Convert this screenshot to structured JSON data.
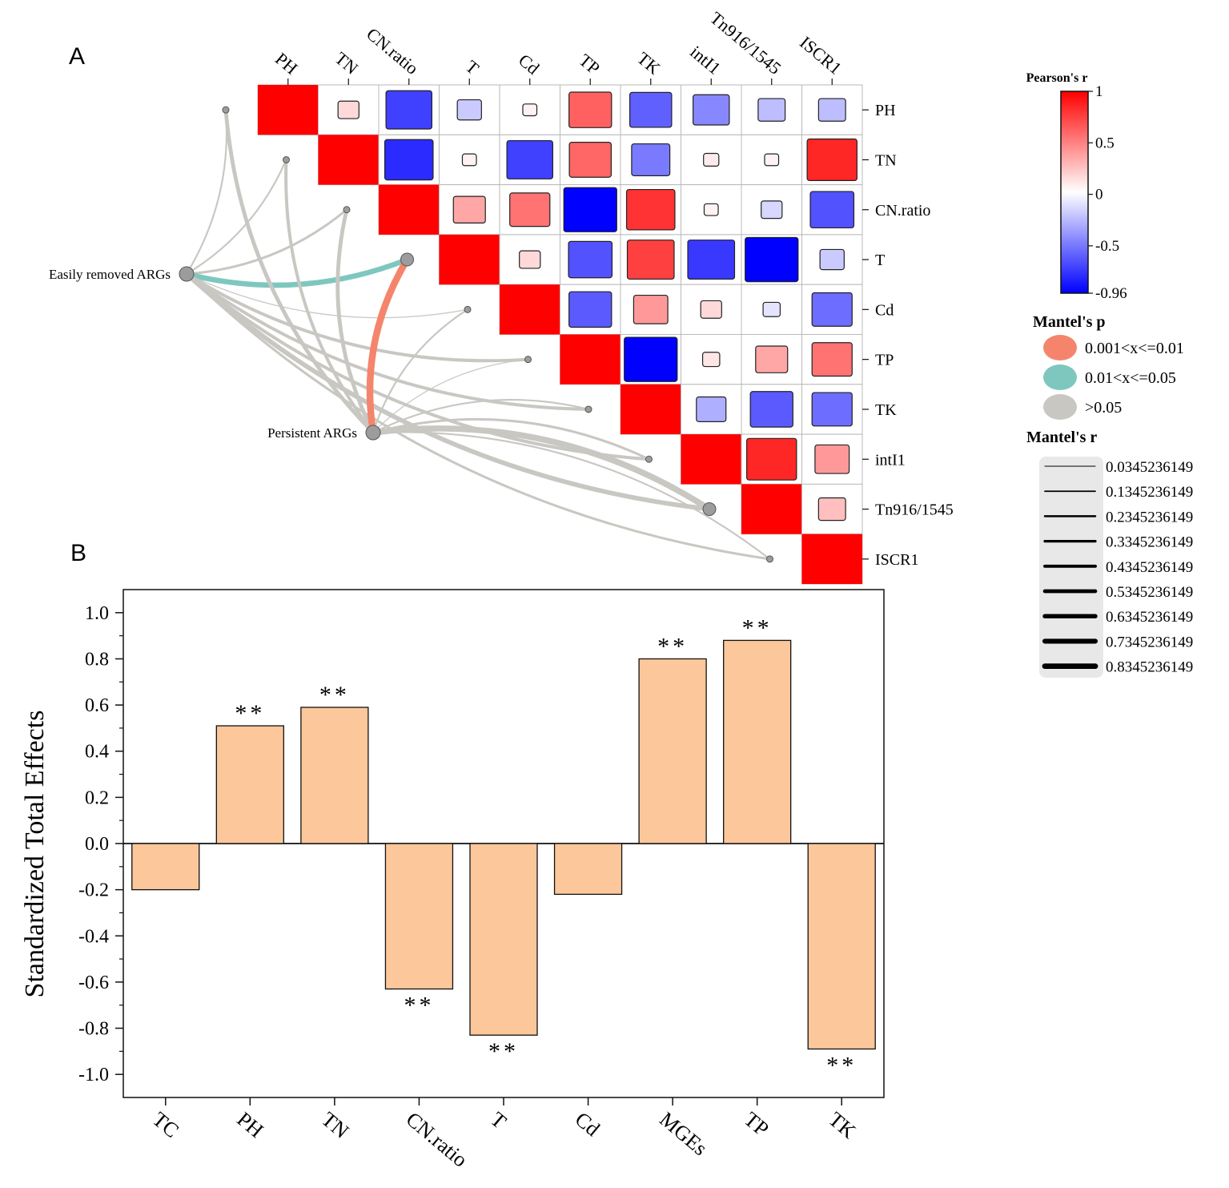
{
  "panel_a_label": "A",
  "panel_b_label": "B",
  "colors": {
    "pos": "#ff0000",
    "neg": "#0000ff",
    "link_sig1": "#f4856c",
    "link_sig2": "#7ec7be",
    "link_ns": "#c9c7c2",
    "bar_fill": "#fcc79a"
  },
  "chart_data": [
    {
      "type": "heatmap",
      "variables": [
        "PH",
        "TN",
        "CN.ratio",
        "T",
        "Cd",
        "TP",
        "TK",
        "intI1",
        "Tn916/1545",
        "ISCR1"
      ],
      "correlation_upper": [
        [
          1.0,
          0.15,
          -0.72,
          -0.2,
          0.05,
          0.62,
          -0.6,
          -0.45,
          -0.25,
          -0.25
        ],
        [
          1.0,
          -0.8,
          0.05,
          -0.72,
          0.6,
          -0.5,
          0.08,
          0.05,
          0.85
        ],
        [
          1.0,
          0.35,
          0.55,
          -0.96,
          0.8,
          0.05,
          -0.15,
          -0.65
        ],
        [
          1.0,
          0.15,
          -0.65,
          0.75,
          -0.75,
          -0.96,
          -0.2
        ],
        [
          1.0,
          -0.62,
          0.4,
          0.15,
          -0.1,
          -0.55
        ],
        [
          1.0,
          -0.96,
          0.1,
          0.35,
          0.55
        ],
        [
          1.0,
          -0.3,
          -0.62,
          -0.55
        ],
        [
          1.0,
          0.85,
          0.4
        ],
        [
          1.0,
          0.25
        ],
        [
          1.0
        ]
      ],
      "colorbar": {
        "title": "Pearson's r",
        "min": -0.96,
        "max": 1,
        "ticks": [
          "1",
          "0.5",
          "0",
          "-0.5",
          "-0.96"
        ],
        "tick_values": [
          1,
          0.5,
          0,
          -0.5,
          -0.96
        ]
      },
      "mantel_sources": [
        "Easily removed ARGs",
        "Persistent ARGs"
      ],
      "mantel_links": [
        {
          "source": "Easily removed ARGs",
          "target": "PH",
          "p": ">0.05",
          "r": 0.13
        },
        {
          "source": "Easily removed ARGs",
          "target": "TN",
          "p": ">0.05",
          "r": 0.13
        },
        {
          "source": "Easily removed ARGs",
          "target": "CN.ratio",
          "p": ">0.05",
          "r": 0.23
        },
        {
          "source": "Easily removed ARGs",
          "target": "T",
          "p": "0.01<x<=0.05",
          "r": 0.63
        },
        {
          "source": "Easily removed ARGs",
          "target": "Cd",
          "p": ">0.05",
          "r": 0.03
        },
        {
          "source": "Easily removed ARGs",
          "target": "TP",
          "p": ">0.05",
          "r": 0.33
        },
        {
          "source": "Easily removed ARGs",
          "target": "TK",
          "p": ">0.05",
          "r": 0.33
        },
        {
          "source": "Easily removed ARGs",
          "target": "intI1",
          "p": ">0.05",
          "r": 0.33
        },
        {
          "source": "Easily removed ARGs",
          "target": "Tn916/1545",
          "p": ">0.05",
          "r": 0.53
        },
        {
          "source": "Easily removed ARGs",
          "target": "ISCR1",
          "p": ">0.05",
          "r": 0.23
        },
        {
          "source": "Persistent ARGs",
          "target": "PH",
          "p": ">0.05",
          "r": 0.43
        },
        {
          "source": "Persistent ARGs",
          "target": "TN",
          "p": ">0.05",
          "r": 0.33
        },
        {
          "source": "Persistent ARGs",
          "target": "CN.ratio",
          "p": ">0.05",
          "r": 0.43
        },
        {
          "source": "Persistent ARGs",
          "target": "T",
          "p": "0.001<x<=0.01",
          "r": 0.83
        },
        {
          "source": "Persistent ARGs",
          "target": "Cd",
          "p": ">0.05",
          "r": 0.13
        },
        {
          "source": "Persistent ARGs",
          "target": "TP",
          "p": ">0.05",
          "r": 0.03
        },
        {
          "source": "Persistent ARGs",
          "target": "TK",
          "p": ">0.05",
          "r": 0.13
        },
        {
          "source": "Persistent ARGs",
          "target": "intI1",
          "p": ">0.05",
          "r": 0.23
        },
        {
          "source": "Persistent ARGs",
          "target": "Tn916/1545",
          "p": ">0.05",
          "r": 0.73
        },
        {
          "source": "Persistent ARGs",
          "target": "ISCR1",
          "p": ">0.05",
          "r": 0.13
        }
      ],
      "legend_mantel_p": {
        "title": "Mantel's p",
        "items": [
          "0.001<x<=0.01",
          "0.01<x<=0.05",
          ">0.05"
        ]
      },
      "legend_mantel_r": {
        "title": "Mantel's r",
        "items": [
          "0.0345236149",
          "0.1345236149",
          "0.2345236149",
          "0.3345236149",
          "0.4345236149",
          "0.5345236149",
          "0.6345236149",
          "0.7345236149",
          "0.8345236149"
        ],
        "values": [
          0.0345236149,
          0.1345236149,
          0.2345236149,
          0.3345236149,
          0.4345236149,
          0.5345236149,
          0.6345236149,
          0.7345236149,
          0.8345236149
        ]
      }
    },
    {
      "type": "bar",
      "categories": [
        "TC",
        "PH",
        "TN",
        "CN.ratio",
        "T",
        "Cd",
        "MGEs",
        "TP",
        "TK"
      ],
      "values": [
        -0.2,
        0.51,
        0.59,
        -0.63,
        -0.83,
        -0.22,
        0.8,
        0.88,
        -0.89
      ],
      "annotations": [
        "",
        "**",
        "**",
        "**",
        "**",
        "",
        "**",
        "**",
        "**"
      ],
      "ylabel": "Standardized Total Effects",
      "ylim": [
        -1.1,
        1.1
      ],
      "yticks": [
        1.0,
        0.8,
        0.6,
        0.4,
        0.2,
        0.0,
        -0.2,
        -0.4,
        -0.6,
        -0.8,
        -1.0
      ],
      "ytick_labels": [
        "1.0",
        "0.8",
        "0.6",
        "0.4",
        "0.2",
        "0.0",
        "-0.2",
        "-0.4",
        "-0.6",
        "-0.8",
        "-1.0"
      ]
    }
  ]
}
